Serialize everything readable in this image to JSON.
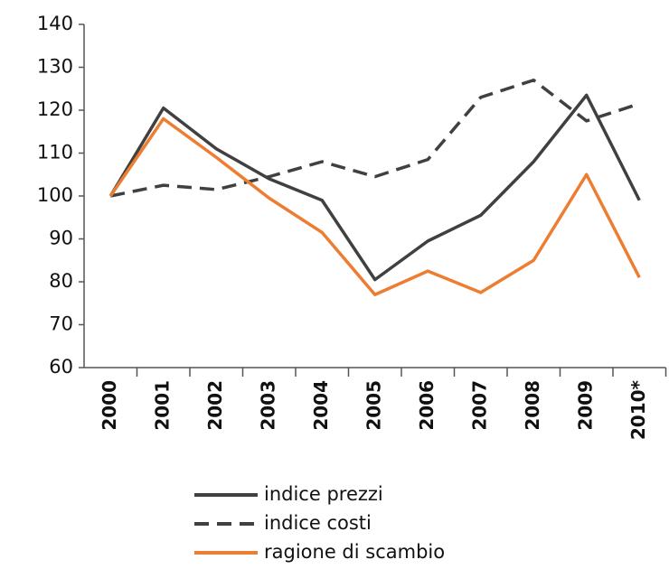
{
  "chart_data": {
    "type": "line",
    "categories": [
      "2000",
      "2001",
      "2002",
      "2003",
      "2004",
      "2005",
      "2006",
      "2007",
      "2008",
      "2009",
      "2010*"
    ],
    "series": [
      {
        "name": "indice prezzi",
        "color": "#404040",
        "line_style": "solid",
        "values": [
          100,
          120.5,
          111,
          104,
          99,
          80.5,
          89.5,
          95.5,
          108,
          123.5,
          99
        ]
      },
      {
        "name": "indice costi",
        "color": "#404040",
        "line_style": "dashed",
        "values": [
          100,
          102.5,
          101.5,
          104.5,
          108,
          104.5,
          108.5,
          123,
          127,
          117.5,
          121.5
        ]
      },
      {
        "name": "ragione di scambio",
        "color": "#ed7d31",
        "line_style": "solid",
        "values": [
          100,
          118,
          109,
          99.5,
          91.5,
          77,
          82.5,
          77.5,
          85,
          105,
          81
        ]
      }
    ],
    "ylim": [
      60,
      140
    ],
    "yticks": [
      60,
      70,
      80,
      90,
      100,
      110,
      120,
      130,
      140
    ],
    "grid": false,
    "legend": "bottom"
  }
}
